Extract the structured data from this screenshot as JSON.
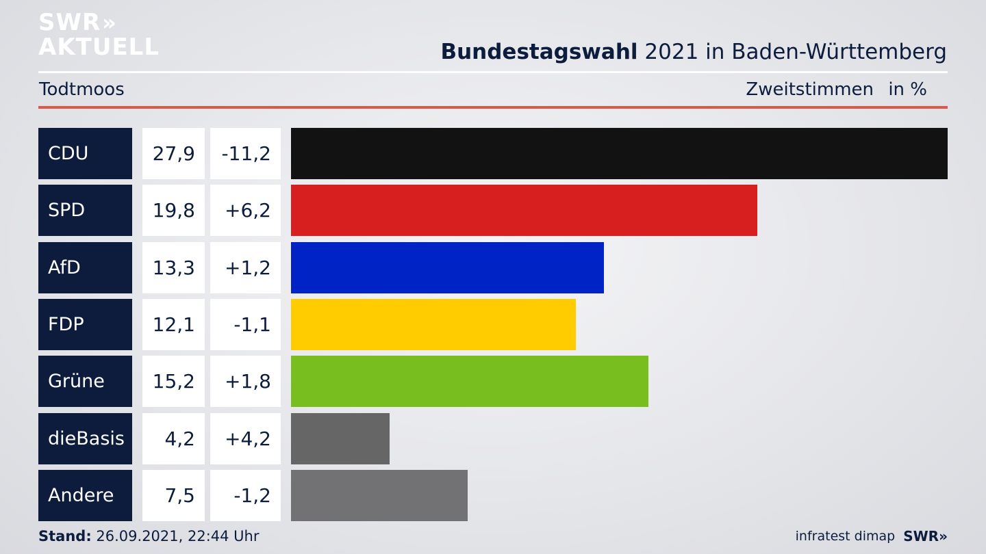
{
  "header": {
    "logo_line1": "SWR",
    "logo_chevrons": "»",
    "logo_line2": "AKTUELL",
    "title_bold": "Bundestagswahl",
    "title_rest": " 2021 in Baden-Württemberg",
    "location": "Todtmoos",
    "metric": "Zweitstimmen",
    "unit": "in %"
  },
  "chart_data": {
    "type": "bar",
    "categories": [
      "CDU",
      "SPD",
      "AfD",
      "FDP",
      "Grüne",
      "dieBasis",
      "Andere"
    ],
    "values": [
      27.9,
      19.8,
      13.3,
      12.1,
      15.2,
      4.2,
      7.5
    ],
    "value_labels": [
      "27,9",
      "19,8",
      "13,3",
      "12,1",
      "15,2",
      "4,2",
      "7,5"
    ],
    "diff_labels": [
      "-11,2",
      "+6,2",
      "+1,2",
      "-1,1",
      "+1,8",
      "+4,2",
      "-1,2"
    ],
    "colors": [
      "#121212",
      "#d81f20",
      "#0023c6",
      "#ffcc00",
      "#78be1e",
      "#666666",
      "#727274"
    ],
    "xlim": [
      0,
      27.9
    ]
  },
  "footer": {
    "stand_label": "Stand:",
    "stand_value": " 26.09.2021, 22:44 Uhr",
    "source": "infratest dimap",
    "brand": "SWR»"
  }
}
